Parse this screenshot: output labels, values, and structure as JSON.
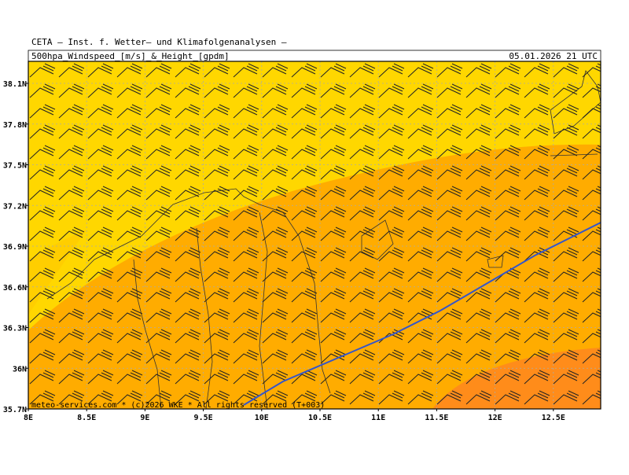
{
  "header": {
    "institute": "CETA – Inst. f. Wetter– und Klimafolgenanalysen –",
    "title": "500hpa_Windspeed_[m/s]_&_Height_[gpdm]",
    "valid_time": "05.01.2026 21 UTC"
  },
  "axes": {
    "lat_labels": [
      "38.1N",
      "37.8N",
      "37.5N",
      "37.2N",
      "36.9N",
      "36.6N",
      "36.3N",
      "36N",
      "35.7N"
    ],
    "lon_labels": [
      "8E",
      "8.5E",
      "9E",
      "9.5E",
      "10E",
      "10.5E",
      "11E",
      "11.5E",
      "12E",
      "12.5E"
    ]
  },
  "footer": {
    "credit": "meteo-services.com * (c)2026 WKE * All rights reserved (T+003)"
  }
}
